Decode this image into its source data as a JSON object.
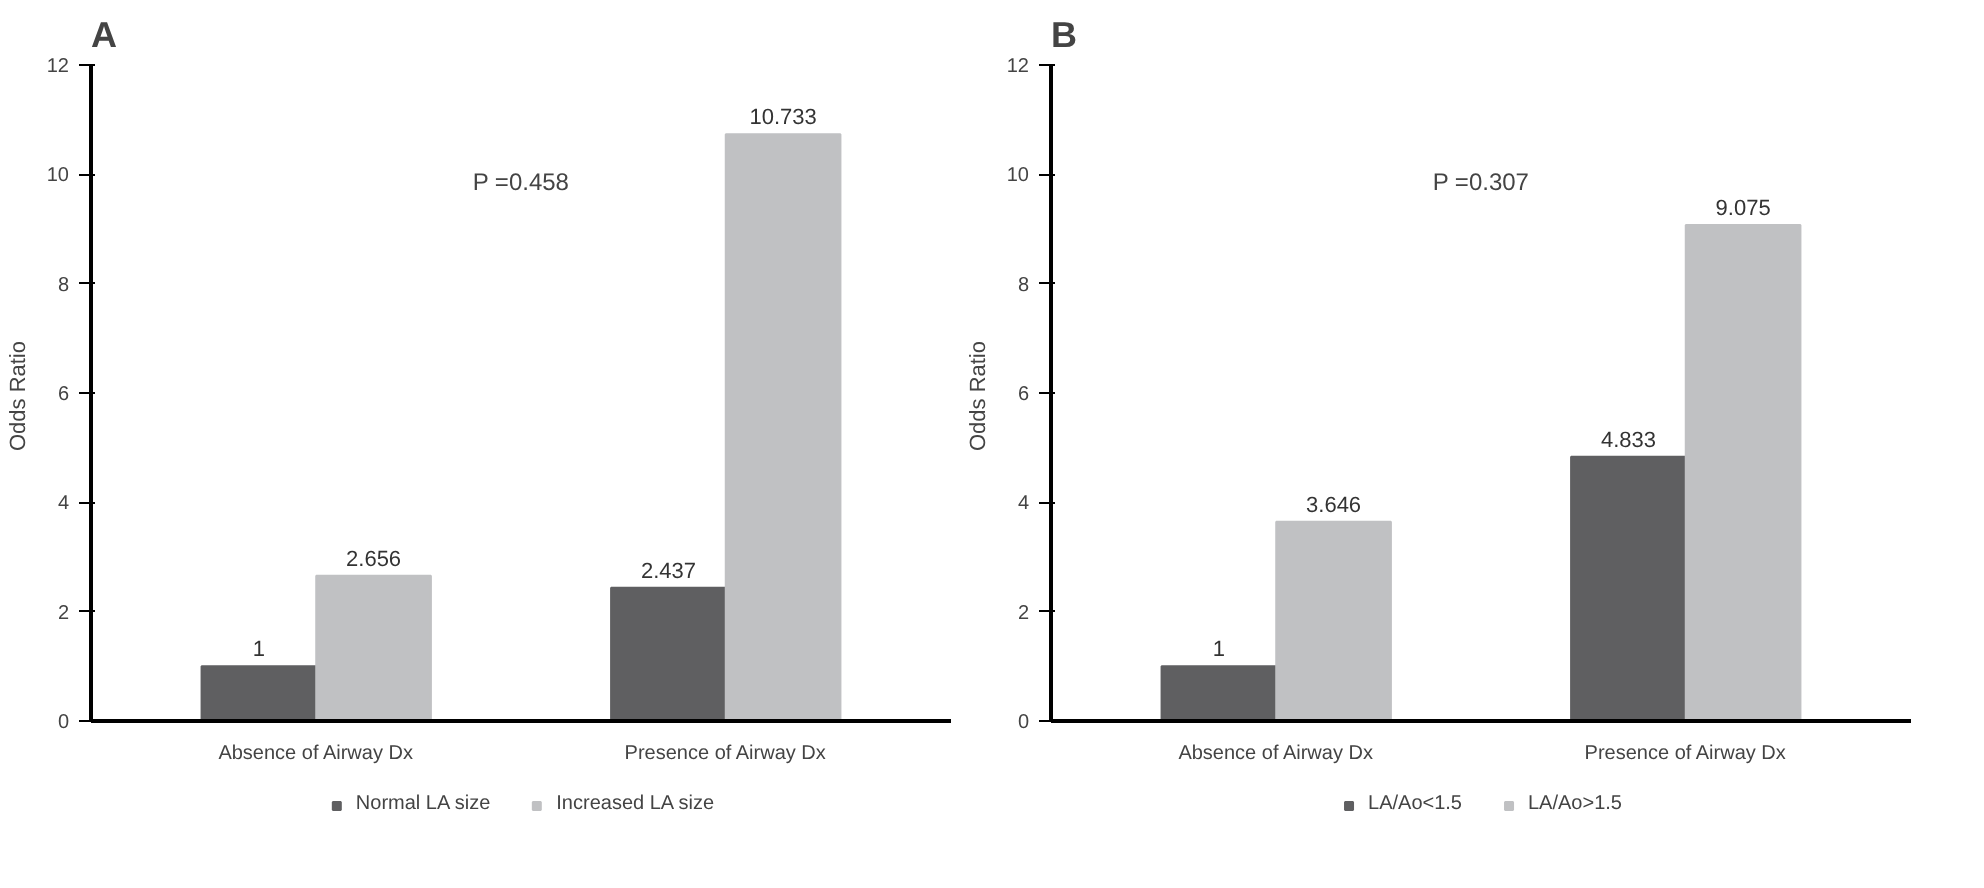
{
  "chart_data": [
    {
      "type": "bar",
      "title": "A",
      "ylabel": "Odds  Ratio",
      "categories": [
        "Absence of Airway Dx",
        "Presence of Airway Dx"
      ],
      "series": [
        {
          "name": "Normal LA size",
          "color": "#5f5f61",
          "values": [
            1,
            2.437
          ]
        },
        {
          "name": "Increased LA size",
          "color": "#c0c1c3",
          "values": [
            2.656,
            10.733
          ]
        }
      ],
      "ylim": [
        0,
        12
      ],
      "yticks": [
        0,
        2,
        4,
        6,
        8,
        10,
        12
      ],
      "data_labels": true,
      "legend": "bottom",
      "grid": false,
      "annotations": [
        "P =0.458"
      ]
    },
    {
      "type": "bar",
      "title": "B",
      "ylabel": "Odds  Ratio",
      "categories": [
        "Absence of Airway Dx",
        "Presence of Airway Dx"
      ],
      "series": [
        {
          "name": "LA/Ao<1.5",
          "color": "#5f5f61",
          "values": [
            1,
            4.833
          ]
        },
        {
          "name": "LA/Ao>1.5",
          "color": "#c0c1c3",
          "values": [
            3.646,
            9.075
          ]
        }
      ],
      "ylim": [
        0,
        12
      ],
      "yticks": [
        0,
        2,
        4,
        6,
        8,
        10,
        12
      ],
      "data_labels": true,
      "legend": "bottom",
      "grid": false,
      "annotations": [
        "P =0.307"
      ]
    }
  ]
}
